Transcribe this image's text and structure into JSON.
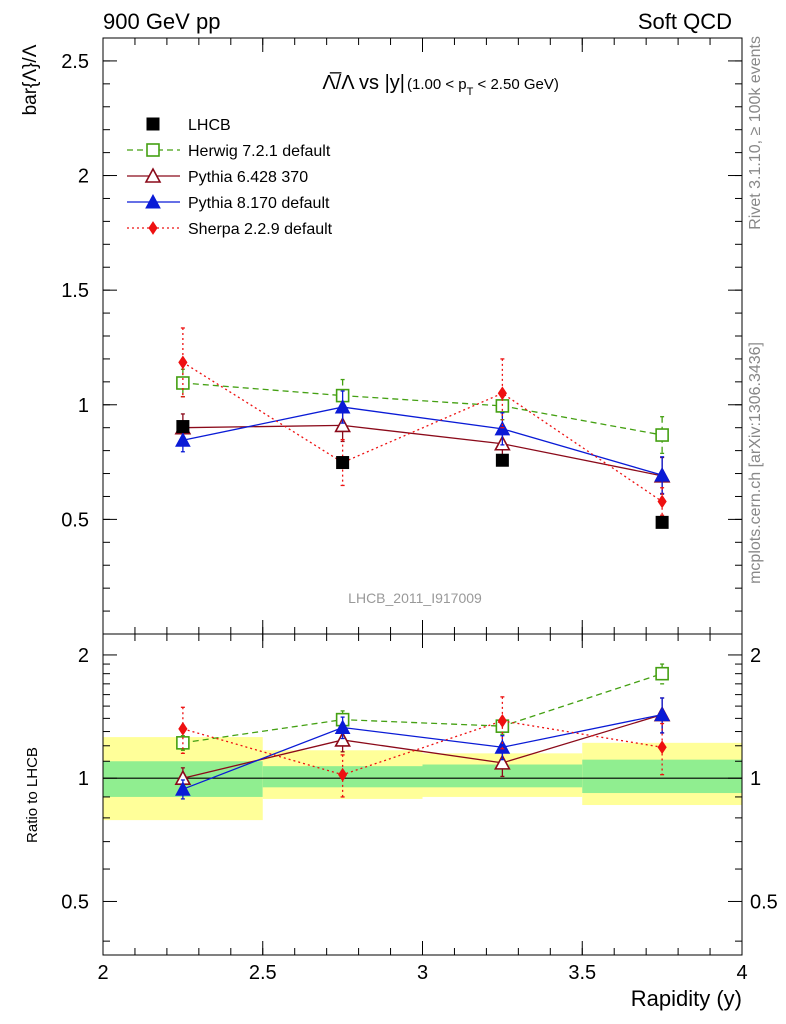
{
  "header": {
    "left": "900 GeV pp",
    "right": "Soft QCD"
  },
  "side_labels": {
    "top": "Rivet 3.1.10, ≥ 100k events",
    "bottom": "mcplots.cern.ch [arXiv:1306.3436]"
  },
  "watermark": "LHCB_2011_I917009",
  "chart_data": [
    {
      "type": "scatter",
      "panel": "main",
      "title_main": "Λ̅/Λ vs |y|",
      "title_range": "(1.00 < p",
      "title_sub": "T",
      "title_unit": " < 2.50 GeV)",
      "ylabel": "bar{Λ}/Λ",
      "xlabel": "",
      "xlim": [
        2,
        4
      ],
      "ylim": [
        0,
        2.6
      ],
      "yticks": [
        0.5,
        1,
        1.5,
        2,
        2.5
      ],
      "ytick_labels": [
        "0.5",
        "1",
        "1.5",
        "2",
        "2.5"
      ],
      "legend_position": "top-left",
      "x": [
        2.25,
        2.75,
        3.25,
        3.75
      ],
      "series": [
        {
          "name": "LHCB",
          "color": "#000000",
          "marker": "square-filled",
          "line": "none",
          "values": [
            0.905,
            0.748,
            0.758,
            0.487
          ],
          "err": [
            0.02,
            0.02,
            0.02,
            0.015
          ]
        },
        {
          "name": "Herwig 7.2.1 default",
          "color": "#44a012",
          "marker": "square-open",
          "line": "dashed",
          "values": [
            1.095,
            1.04,
            0.995,
            0.868
          ],
          "err": [
            0.06,
            0.07,
            0.06,
            0.08
          ]
        },
        {
          "name": "Pythia 6.428 370",
          "color": "#8b0a1a",
          "marker": "triangle-open",
          "line": "solid",
          "values": [
            0.9,
            0.91,
            0.83,
            0.69
          ],
          "err": [
            0.06,
            0.07,
            0.07,
            0.08
          ]
        },
        {
          "name": "Pythia 8.170 default",
          "color": "#0a1bd6",
          "marker": "triangle-filled",
          "line": "solid",
          "values": [
            0.845,
            0.99,
            0.895,
            0.693
          ],
          "err": [
            0.05,
            0.07,
            0.07,
            0.08
          ]
        },
        {
          "name": "Sherpa 2.2.9 default",
          "color": "#ee1111",
          "marker": "diamond-filled",
          "line": "dotted",
          "values": [
            1.185,
            0.748,
            1.05,
            0.578
          ],
          "err": [
            0.15,
            0.1,
            0.15,
            0.06
          ]
        }
      ]
    },
    {
      "type": "scatter",
      "panel": "ratio",
      "ylabel": "Ratio to LHCB",
      "xlabel": "Rapidity (y)",
      "xlim": [
        2,
        4
      ],
      "ylim": [
        0.37,
        2.25
      ],
      "yscale": "log",
      "xticks": [
        2,
        2.5,
        3,
        3.5,
        4
      ],
      "xtick_labels": [
        "2",
        "2.5",
        "3",
        "3.5",
        "4"
      ],
      "yticks": [
        0.5,
        1,
        2
      ],
      "ytick_labels": [
        "0.5",
        "1",
        "2"
      ],
      "bands": [
        {
          "x": [
            2.0,
            2.5
          ],
          "inner": [
            0.9,
            1.1
          ],
          "outer": [
            0.79,
            1.26
          ]
        },
        {
          "x": [
            2.5,
            3.0
          ],
          "inner": [
            0.95,
            1.07
          ],
          "outer": [
            0.89,
            1.17
          ]
        },
        {
          "x": [
            3.0,
            3.5
          ],
          "inner": [
            0.95,
            1.08
          ],
          "outer": [
            0.9,
            1.15
          ]
        },
        {
          "x": [
            3.5,
            4.0
          ],
          "inner": [
            0.92,
            1.11
          ],
          "outer": [
            0.86,
            1.22
          ]
        }
      ],
      "band_colors": {
        "inner": "#90ee90",
        "outer": "#ffff99"
      },
      "x": [
        2.25,
        2.75,
        3.25,
        3.75
      ],
      "series": [
        {
          "name": "Herwig 7.2.1 default",
          "color": "#44a012",
          "marker": "square-open",
          "line": "dashed",
          "values": [
            1.22,
            1.39,
            1.34,
            1.8
          ],
          "err": [
            0.05,
            0.07,
            0.06,
            0.1
          ]
        },
        {
          "name": "Pythia 6.428 370",
          "color": "#8b0a1a",
          "marker": "triangle-open",
          "line": "solid",
          "values": [
            1.0,
            1.24,
            1.09,
            1.43
          ],
          "err": [
            0.06,
            0.08,
            0.08,
            0.14
          ]
        },
        {
          "name": "Pythia 8.170 default",
          "color": "#0a1bd6",
          "marker": "triangle-filled",
          "line": "solid",
          "values": [
            0.94,
            1.33,
            1.19,
            1.43
          ],
          "err": [
            0.05,
            0.08,
            0.08,
            0.14
          ]
        },
        {
          "name": "Sherpa 2.2.9 default",
          "color": "#ee1111",
          "marker": "diamond-filled",
          "line": "dotted",
          "values": [
            1.32,
            1.02,
            1.38,
            1.19
          ],
          "err": [
            0.17,
            0.12,
            0.2,
            0.17
          ]
        }
      ]
    }
  ]
}
